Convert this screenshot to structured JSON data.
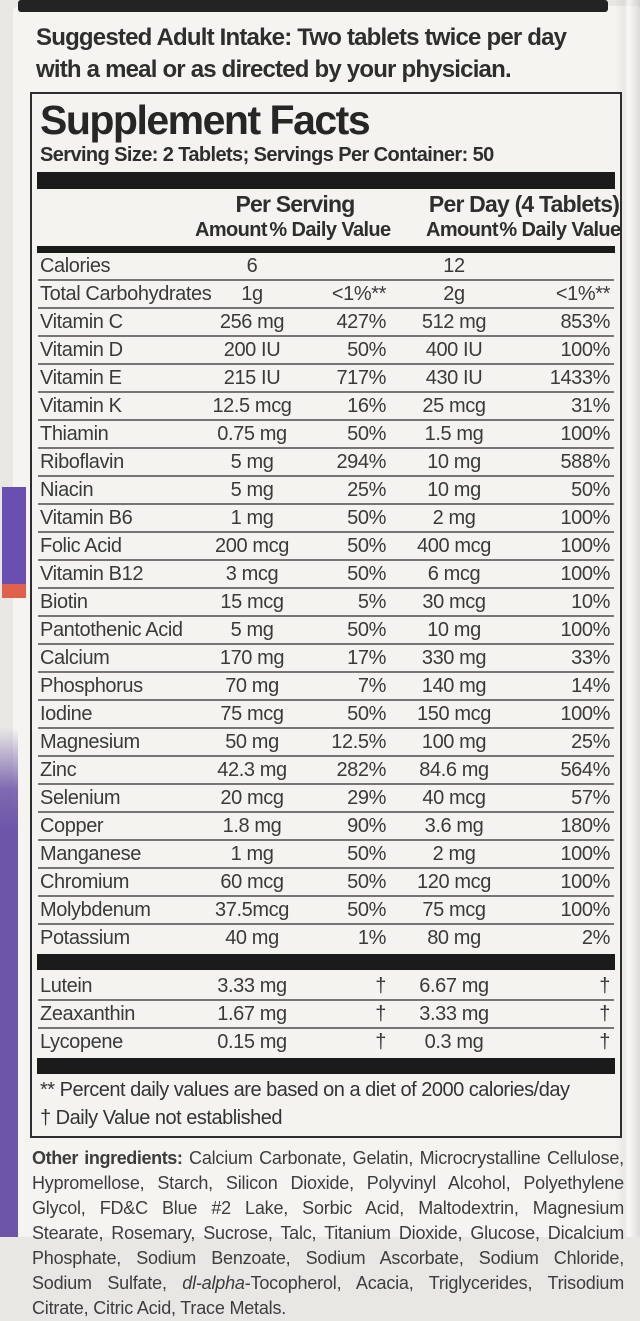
{
  "intake": {
    "line1": "Suggested Adult Intake: Two tablets twice per day",
    "line2": "with a meal or as directed by your physician."
  },
  "supplement_facts": {
    "title": "Supplement Facts",
    "serving_info": "Serving Size: 2 Tablets; Servings Per Container: 50",
    "columns": {
      "per_serving": "Per Serving",
      "per_day": "Per Day (4 Tablets)",
      "amount": "Amount",
      "daily_value": "% Daily Value"
    },
    "rows": [
      {
        "name": "Calories",
        "amount_serving": "6",
        "dv_serving": "",
        "amount_day": "12",
        "dv_day": ""
      },
      {
        "name": "Total Carbohydrates",
        "amount_serving": "1g",
        "dv_serving": "<1%**",
        "amount_day": "2g",
        "dv_day": "<1%**"
      },
      {
        "name": "Vitamin C",
        "amount_serving": "256 mg",
        "dv_serving": "427%",
        "amount_day": "512 mg",
        "dv_day": "853%"
      },
      {
        "name": "Vitamin D",
        "amount_serving": "200 IU",
        "dv_serving": "50%",
        "amount_day": "400 IU",
        "dv_day": "100%"
      },
      {
        "name": "Vitamin E",
        "amount_serving": "215 IU",
        "dv_serving": "717%",
        "amount_day": "430 IU",
        "dv_day": "1433%"
      },
      {
        "name": "Vitamin K",
        "amount_serving": "12.5 mcg",
        "dv_serving": "16%",
        "amount_day": "25 mcg",
        "dv_day": "31%"
      },
      {
        "name": "Thiamin",
        "amount_serving": "0.75 mg",
        "dv_serving": "50%",
        "amount_day": "1.5 mg",
        "dv_day": "100%"
      },
      {
        "name": "Riboflavin",
        "amount_serving": "5 mg",
        "dv_serving": "294%",
        "amount_day": "10 mg",
        "dv_day": "588%"
      },
      {
        "name": "Niacin",
        "amount_serving": "5 mg",
        "dv_serving": "25%",
        "amount_day": "10 mg",
        "dv_day": "50%"
      },
      {
        "name": "Vitamin B6",
        "amount_serving": "1 mg",
        "dv_serving": "50%",
        "amount_day": "2 mg",
        "dv_day": "100%"
      },
      {
        "name": "Folic Acid",
        "amount_serving": "200 mcg",
        "dv_serving": "50%",
        "amount_day": "400 mcg",
        "dv_day": "100%"
      },
      {
        "name": "Vitamin B12",
        "amount_serving": "3 mcg",
        "dv_serving": "50%",
        "amount_day": "6 mcg",
        "dv_day": "100%"
      },
      {
        "name": "Biotin",
        "amount_serving": "15 mcg",
        "dv_serving": "5%",
        "amount_day": "30 mcg",
        "dv_day": "10%"
      },
      {
        "name": "Pantothenic Acid",
        "amount_serving": "5 mg",
        "dv_serving": "50%",
        "amount_day": "10 mg",
        "dv_day": "100%"
      },
      {
        "name": "Calcium",
        "amount_serving": "170 mg",
        "dv_serving": "17%",
        "amount_day": "330 mg",
        "dv_day": "33%"
      },
      {
        "name": "Phosphorus",
        "amount_serving": "70 mg",
        "dv_serving": "7%",
        "amount_day": "140 mg",
        "dv_day": "14%"
      },
      {
        "name": "Iodine",
        "amount_serving": "75 mcg",
        "dv_serving": "50%",
        "amount_day": "150 mcg",
        "dv_day": "100%"
      },
      {
        "name": "Magnesium",
        "amount_serving": "50 mg",
        "dv_serving": "12.5%",
        "amount_day": "100 mg",
        "dv_day": "25%"
      },
      {
        "name": "Zinc",
        "amount_serving": "42.3 mg",
        "dv_serving": "282%",
        "amount_day": "84.6 mg",
        "dv_day": "564%"
      },
      {
        "name": "Selenium",
        "amount_serving": "20 mcg",
        "dv_serving": "29%",
        "amount_day": "40 mcg",
        "dv_day": "57%"
      },
      {
        "name": "Copper",
        "amount_serving": "1.8 mg",
        "dv_serving": "90%",
        "amount_day": "3.6 mg",
        "dv_day": "180%"
      },
      {
        "name": "Manganese",
        "amount_serving": "1 mg",
        "dv_serving": "50%",
        "amount_day": "2 mg",
        "dv_day": "100%"
      },
      {
        "name": "Chromium",
        "amount_serving": "60 mcg",
        "dv_serving": "50%",
        "amount_day": "120 mcg",
        "dv_day": "100%"
      },
      {
        "name": "Molybdenum",
        "amount_serving": "37.5mcg",
        "dv_serving": "50%",
        "amount_day": "75 mcg",
        "dv_day": "100%"
      },
      {
        "name": "Potassium",
        "amount_serving": "40 mg",
        "dv_serving": "1%",
        "amount_day": "80 mg",
        "dv_day": "2%"
      }
    ],
    "extra_rows": [
      {
        "name": "Lutein",
        "amount_serving": "3.33 mg",
        "dv_serving": "†",
        "amount_day": "6.67 mg",
        "dv_day": "†"
      },
      {
        "name": "Zeaxanthin",
        "amount_serving": "1.67 mg",
        "dv_serving": "†",
        "amount_day": "3.33 mg",
        "dv_day": "†"
      },
      {
        "name": "Lycopene",
        "amount_serving": "0.15 mg",
        "dv_serving": "†",
        "amount_day": "0.3 mg",
        "dv_day": "†"
      }
    ],
    "footnotes": {
      "line1": "** Percent daily values are based on a diet of 2000 calories/day",
      "line2": "† Daily Value not established"
    }
  },
  "other_ingredients": {
    "label": "Other ingredients:",
    "text_part1": " Calcium Carbonate, Gelatin, Microcrystalline Cellulose, Hypromellose, Starch, Silicon Dioxide, Polyvinyl Alcohol, Polyethylene Glycol, FD&C Blue #2 Lake, Sorbic Acid, Maltodextrin, Magnesium Stearate, Rosemary, Sucrose, Talc, Titanium Dioxide, Glucose, Dicalcium Phosphate, Sodium Benzoate, Sodium Ascorbate, Sodium Chloride, Sodium Sulfate, ",
    "italic_part": "dl-alpha",
    "text_part2": "-Tocopherol, Acacia, Triglycerides, Trisodium Citrate, Citric Acid, Trace Metals."
  },
  "colors": {
    "accent_purple_upper": "#6950b0",
    "accent_orange": "#e0614b",
    "accent_purple_lower": "#6d55a8",
    "bar_black": "#1b1b1b",
    "label_background": "#f5f4f1"
  }
}
